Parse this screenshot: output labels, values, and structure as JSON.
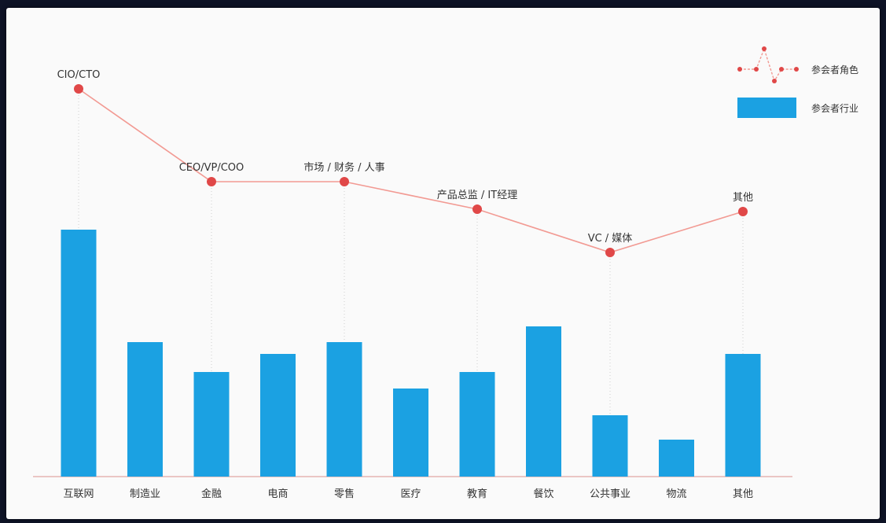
{
  "chart_data": {
    "type": "bar",
    "categories": [
      "互联网",
      "制造业",
      "金融",
      "电商",
      "零售",
      "医疗",
      "教育",
      "餐饮",
      "公共事业",
      "物流",
      "其他"
    ],
    "series": [
      {
        "name": "参会者行业",
        "type": "bar",
        "values": [
          314,
          171,
          133,
          156,
          171,
          112,
          133,
          191,
          78,
          47,
          156
        ]
      },
      {
        "name": "参会者角色",
        "type": "line",
        "points": [
          {
            "category": "互联网",
            "value": 493,
            "label": "CIO/CTO"
          },
          {
            "category": "金融",
            "value": 375,
            "label": "CEO/VP/COO"
          },
          {
            "category": "零售",
            "value": 375,
            "label": "市场 / 财务 / 人事"
          },
          {
            "category": "教育",
            "value": 340,
            "label": "产品总监 / IT经理"
          },
          {
            "category": "公共事业",
            "value": 285,
            "label": "VC / 媒体"
          },
          {
            "category": "其他",
            "value": 337,
            "label": "其他"
          }
        ]
      }
    ],
    "colors": {
      "bar": "#1ba1e2",
      "line": "#f29a93",
      "marker": "#e04848",
      "axis": "#e0a8a4"
    },
    "legend_position": "top-right",
    "grid": false
  }
}
